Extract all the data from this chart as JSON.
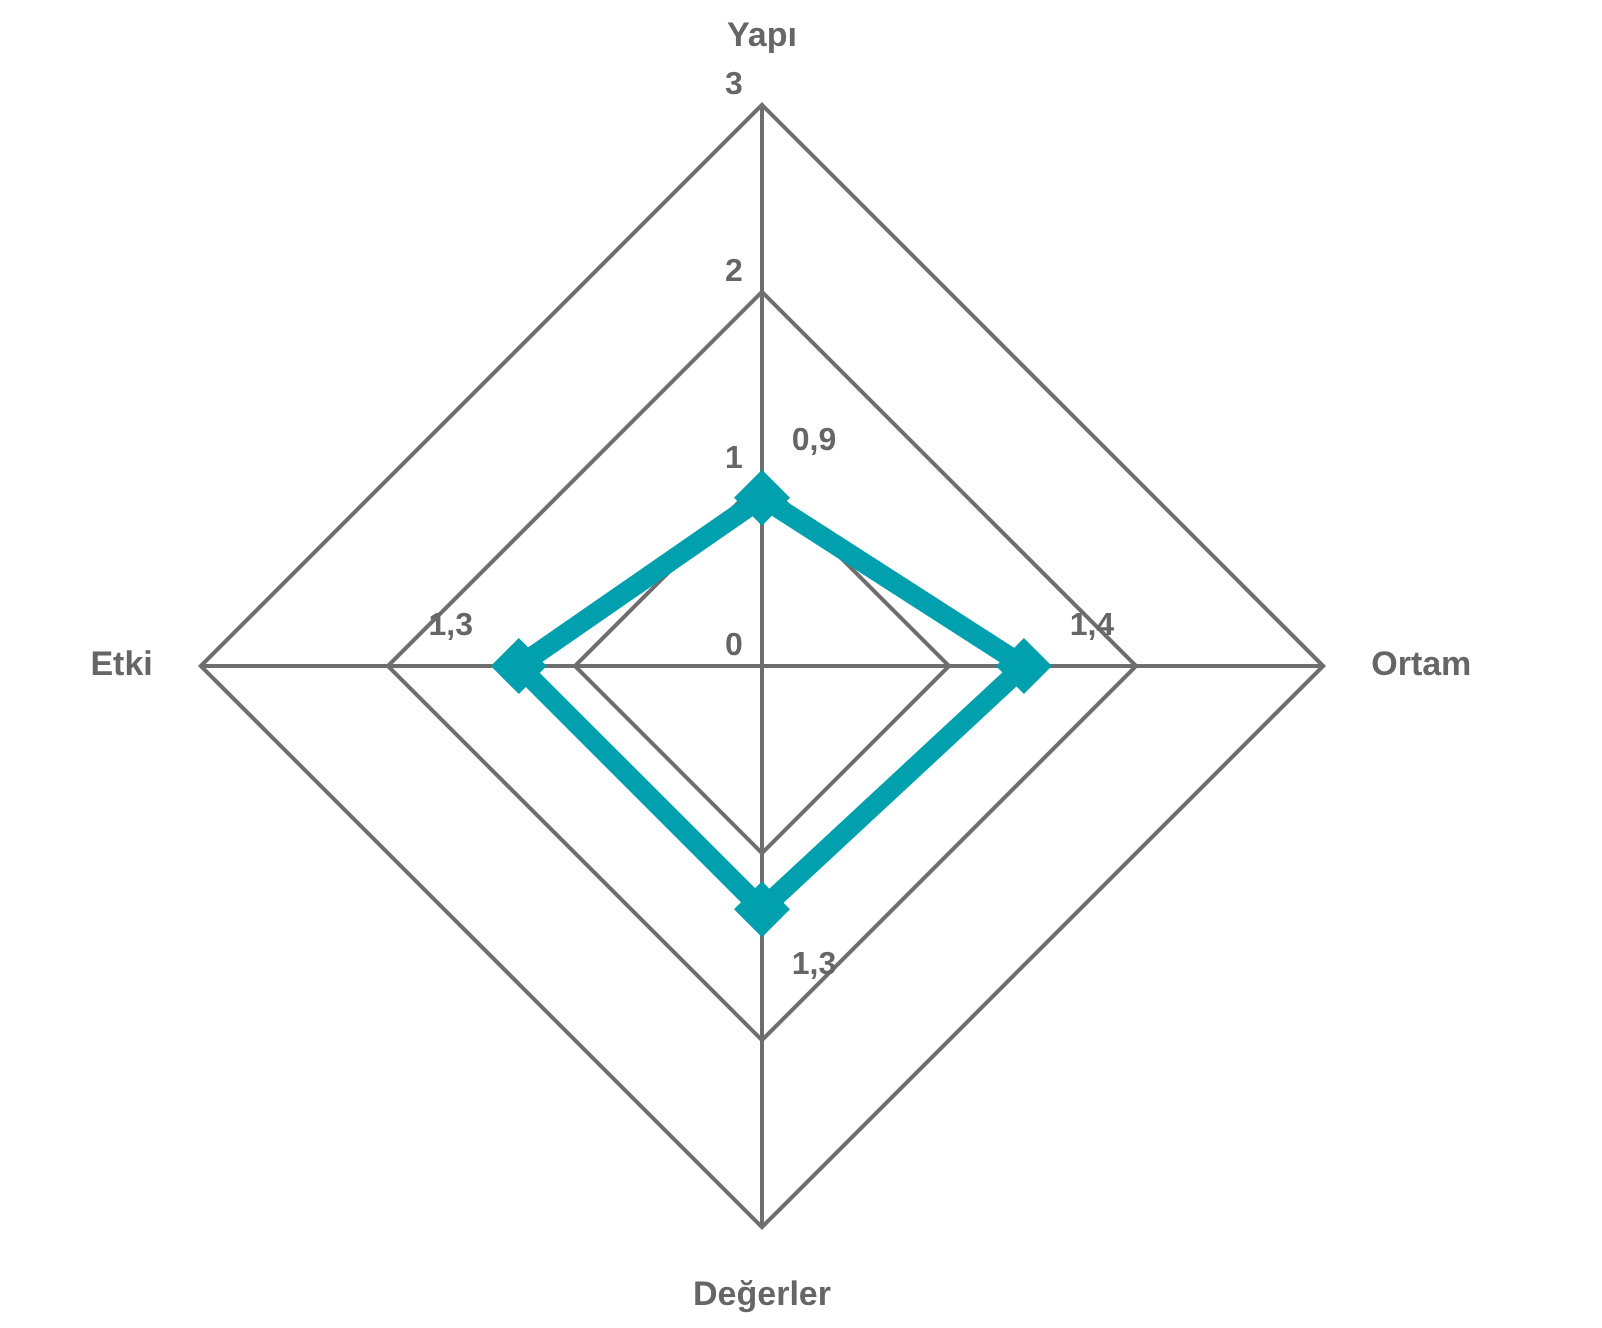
{
  "chart_data": {
    "type": "radar",
    "categories": [
      "Yapı",
      "Ortam",
      "Değerler",
      "Etki"
    ],
    "series": [
      {
        "color": "#00a0ae",
        "values": [
          0.9,
          1.4,
          1.3,
          1.3
        ],
        "value_labels": [
          "0,9",
          "1,4",
          "1,3",
          "1,3"
        ]
      }
    ],
    "ylim": [
      0,
      3
    ],
    "yticks": [
      0,
      1,
      2,
      3
    ],
    "grid": true,
    "marker": "diamond"
  }
}
